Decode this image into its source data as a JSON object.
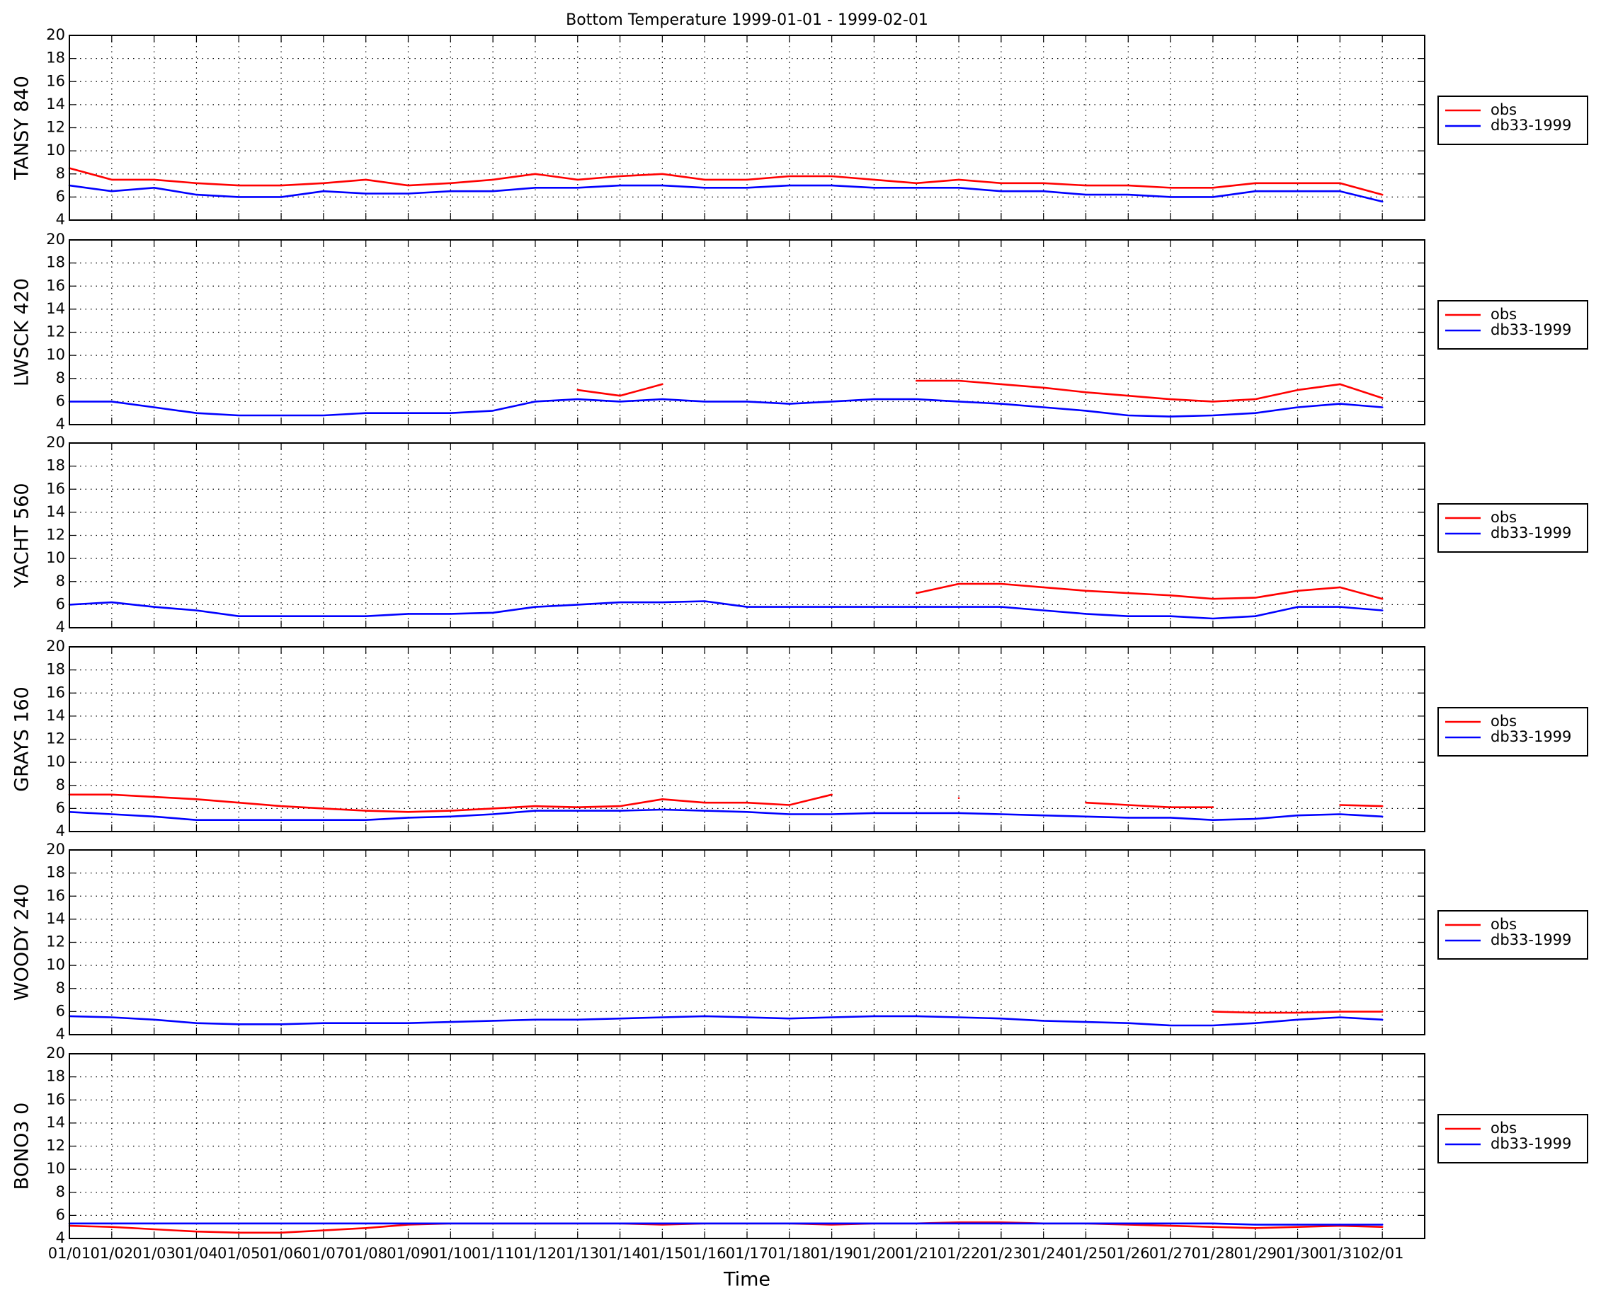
{
  "chart_data": {
    "type": "line",
    "title": "Bottom Temperature 1999-01-01 - 1999-02-01",
    "xlabel": "Time",
    "x": [
      "01/01",
      "01/02",
      "01/03",
      "01/04",
      "01/05",
      "01/06",
      "01/07",
      "01/08",
      "01/09",
      "01/10",
      "01/11",
      "01/12",
      "01/13",
      "01/14",
      "01/15",
      "01/16",
      "01/17",
      "01/18",
      "01/19",
      "01/20",
      "01/21",
      "01/22",
      "01/23",
      "01/24",
      "01/25",
      "01/26",
      "01/27",
      "01/28",
      "01/29",
      "01/30",
      "01/31",
      "02/01"
    ],
    "ylim": [
      4,
      20
    ],
    "yticks": [
      4,
      6,
      8,
      10,
      12,
      14,
      16,
      18,
      20
    ],
    "grid": true,
    "legend": "outside right",
    "panels": [
      {
        "ylabel": "TANSY 840",
        "series": [
          {
            "name": "obs",
            "color": "#ff0000",
            "values": [
              8.5,
              7.5,
              7.5,
              7.2,
              7,
              7,
              7.2,
              7.5,
              7,
              7.2,
              7.5,
              8,
              7.5,
              7.8,
              8,
              7.5,
              7.5,
              7.8,
              7.8,
              7.5,
              7.2,
              7.5,
              7.2,
              7.2,
              7,
              7,
              6.8,
              6.8,
              7.2,
              7.2,
              7.2,
              6.2
            ]
          },
          {
            "name": "db33-1999",
            "color": "#0000ff",
            "values": [
              7,
              6.5,
              6.8,
              6.2,
              6,
              6,
              6.5,
              6.3,
              6.3,
              6.5,
              6.5,
              6.8,
              6.8,
              7,
              7,
              6.8,
              6.8,
              7,
              7,
              6.8,
              6.8,
              6.8,
              6.5,
              6.5,
              6.2,
              6.2,
              6,
              6,
              6.5,
              6.5,
              6.5,
              5.6
            ]
          }
        ]
      },
      {
        "ylabel": "LWSCK 420",
        "series": [
          {
            "name": "obs",
            "color": "#ff0000",
            "values": [
              null,
              null,
              null,
              null,
              null,
              null,
              null,
              null,
              null,
              null,
              null,
              null,
              7,
              6.5,
              7.5,
              null,
              null,
              null,
              null,
              null,
              7.8,
              7.8,
              7.5,
              7.2,
              6.8,
              6.5,
              6.2,
              6,
              6.2,
              7,
              7.5,
              6.3
            ]
          },
          {
            "name": "db33-1999",
            "color": "#0000ff",
            "values": [
              6,
              6,
              5.5,
              5,
              4.8,
              4.8,
              4.8,
              5,
              5,
              5,
              5.2,
              6,
              6.2,
              6,
              6.2,
              6,
              6,
              5.8,
              6,
              6.2,
              6.2,
              6,
              5.8,
              5.5,
              5.2,
              4.8,
              4.7,
              4.8,
              5,
              5.5,
              5.8,
              5.5
            ]
          }
        ]
      },
      {
        "ylabel": "YACHT 560",
        "series": [
          {
            "name": "obs",
            "color": "#ff0000",
            "values": [
              null,
              null,
              null,
              null,
              null,
              null,
              null,
              null,
              null,
              null,
              null,
              null,
              null,
              null,
              null,
              null,
              null,
              null,
              null,
              null,
              7,
              7.8,
              7.8,
              7.5,
              7.2,
              7,
              6.8,
              6.5,
              6.6,
              7.2,
              7.5,
              6.5
            ]
          },
          {
            "name": "db33-1999",
            "color": "#0000ff",
            "values": [
              6,
              6.2,
              5.8,
              5.5,
              5,
              5,
              5,
              5,
              5.2,
              5.2,
              5.3,
              5.8,
              6,
              6.2,
              6.2,
              6.3,
              5.8,
              5.8,
              5.8,
              5.8,
              5.8,
              5.8,
              5.8,
              5.5,
              5.2,
              5,
              5,
              4.8,
              5,
              5.8,
              5.8,
              5.5
            ]
          }
        ]
      },
      {
        "ylabel": "GRAYS 160",
        "series": [
          {
            "name": "obs",
            "color": "#ff0000",
            "values": [
              7.2,
              7.2,
              7,
              6.8,
              6.5,
              6.2,
              6,
              5.8,
              5.7,
              5.8,
              6,
              6.2,
              6.1,
              6.2,
              6.8,
              6.5,
              6.5,
              6.3,
              7.2,
              null,
              null,
              6.9,
              null,
              null,
              6.5,
              6.3,
              6.1,
              6.1,
              null,
              null,
              6.3,
              6.2
            ]
          },
          {
            "name": "db33-1999",
            "color": "#0000ff",
            "values": [
              5.7,
              5.5,
              5.3,
              5,
              5,
              5,
              5,
              5,
              5.2,
              5.3,
              5.5,
              5.8,
              5.8,
              5.8,
              5.9,
              5.8,
              5.7,
              5.5,
              5.5,
              5.6,
              5.6,
              5.6,
              5.5,
              5.4,
              5.3,
              5.2,
              5.2,
              5,
              5.1,
              5.4,
              5.5,
              5.3
            ]
          }
        ]
      },
      {
        "ylabel": "WOODY 240",
        "series": [
          {
            "name": "obs",
            "color": "#ff0000",
            "values": [
              null,
              null,
              null,
              null,
              null,
              null,
              null,
              null,
              null,
              null,
              null,
              null,
              null,
              null,
              null,
              null,
              null,
              null,
              null,
              null,
              null,
              null,
              null,
              null,
              null,
              null,
              null,
              6,
              5.9,
              5.9,
              6,
              6
            ]
          },
          {
            "name": "db33-1999",
            "color": "#0000ff",
            "values": [
              5.6,
              5.5,
              5.3,
              5,
              4.9,
              4.9,
              5,
              5,
              5,
              5.1,
              5.2,
              5.3,
              5.3,
              5.4,
              5.5,
              5.6,
              5.5,
              5.4,
              5.5,
              5.6,
              5.6,
              5.5,
              5.4,
              5.2,
              5.1,
              5,
              4.8,
              4.8,
              5,
              5.3,
              5.5,
              5.3
            ]
          }
        ]
      },
      {
        "ylabel": "BONO3 0",
        "series": [
          {
            "name": "obs",
            "color": "#ff0000",
            "values": [
              5.1,
              5,
              4.8,
              4.6,
              4.5,
              4.5,
              4.7,
              4.9,
              5.2,
              5.3,
              5.3,
              5.3,
              5.3,
              5.3,
              5.2,
              5.3,
              5.3,
              5.3,
              5.2,
              5.3,
              5.3,
              5.4,
              5.4,
              5.3,
              5.3,
              5.2,
              5.1,
              5,
              4.9,
              5,
              5.1,
              5
            ]
          },
          {
            "name": "db33-1999",
            "color": "#0000ff",
            "values": [
              5.3,
              5.3,
              5.3,
              5.3,
              5.3,
              5.3,
              5.3,
              5.3,
              5.3,
              5.3,
              5.3,
              5.3,
              5.3,
              5.3,
              5.3,
              5.3,
              5.3,
              5.3,
              5.3,
              5.3,
              5.3,
              5.3,
              5.3,
              5.3,
              5.3,
              5.3,
              5.3,
              5.3,
              5.2,
              5.2,
              5.2,
              5.2
            ]
          }
        ]
      }
    ]
  }
}
